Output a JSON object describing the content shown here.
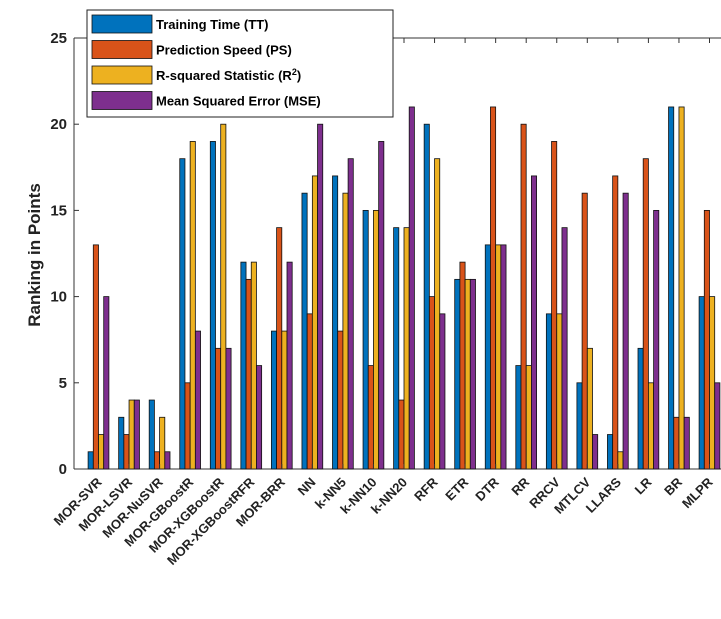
{
  "chart_data": {
    "type": "bar",
    "ylabel": "Ranking in Points",
    "xlabel": "",
    "ylim": [
      0,
      25
    ],
    "yticks": [
      0,
      5,
      10,
      15,
      20,
      25
    ],
    "grid": false,
    "legend_position": "top-left",
    "categories": [
      "MOR-SVR",
      "MOR-LSVR",
      "MOR-NuSVR",
      "MOR-GBoostR",
      "MOR-XGBoostR",
      "MOR-XGBoostRFR",
      "MOR-BRR",
      "NN",
      "k-NN5",
      "k-NN10",
      "k-NN20",
      "RFR",
      "ETR",
      "DTR",
      "RR",
      "RRCV",
      "MTLCV",
      "LLARS",
      "LR",
      "BR",
      "MLPR"
    ],
    "series": [
      {
        "name": "Training Time (TT)",
        "color": "#0072BD",
        "values": [
          1,
          3,
          4,
          18,
          19,
          12,
          8,
          16,
          17,
          15,
          14,
          20,
          11,
          13,
          6,
          9,
          5,
          2,
          7,
          21,
          10
        ]
      },
      {
        "name": "Prediction Speed (PS)",
        "color": "#D95319",
        "values": [
          13,
          2,
          1,
          5,
          7,
          11,
          14,
          9,
          8,
          6,
          4,
          10,
          12,
          21,
          20,
          19,
          16,
          17,
          18,
          3,
          15
        ]
      },
      {
        "name": "R-squared Statistic (R",
        "name_sup": "2",
        "name_suffix": ")",
        "color": "#EDB120",
        "values": [
          2,
          4,
          3,
          19,
          20,
          12,
          8,
          17,
          16,
          15,
          14,
          18,
          11,
          13,
          6,
          9,
          7,
          1,
          5,
          21,
          10
        ]
      },
      {
        "name": "Mean Squared Error (MSE)",
        "color": "#7E2F8E",
        "values": [
          10,
          4,
          1,
          8,
          7,
          6,
          12,
          20,
          18,
          19,
          21,
          9,
          11,
          13,
          17,
          14,
          2,
          16,
          15,
          3,
          5
        ]
      }
    ]
  }
}
